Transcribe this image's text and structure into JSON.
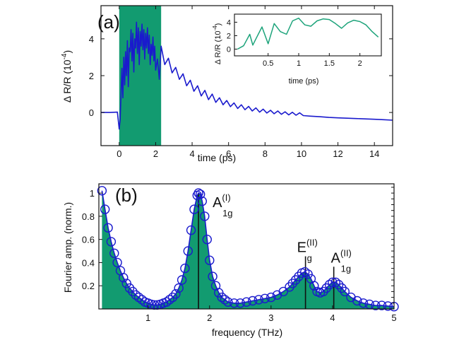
{
  "chart_data": [
    {
      "type": "line",
      "panel_label": "(a)",
      "xlabel": "time (ps)",
      "ylabel": "Δ R/R (10",
      "ylabel_exp": "-4",
      "ylabel_close": ")",
      "xlim": [
        -1,
        15
      ],
      "ylim": [
        -1.8,
        5.8
      ],
      "xticks": [
        0,
        2,
        4,
        6,
        8,
        10,
        12,
        14
      ],
      "yticks": [
        0,
        2,
        4
      ],
      "series_color": "#1a1acd",
      "shaded_region": {
        "x_start": 0,
        "x_end": 2.3,
        "color": "#129b70"
      },
      "series": [
        {
          "x": [
            -1.0,
            -0.5,
            -0.1,
            0.0,
            0.05,
            0.1,
            0.15,
            0.2,
            0.25,
            0.3,
            0.35,
            0.4,
            0.45,
            0.5,
            0.55,
            0.6,
            0.65,
            0.7,
            0.75,
            0.8,
            0.85,
            0.9,
            0.95,
            1.0,
            1.05,
            1.1,
            1.15,
            1.2,
            1.25,
            1.3,
            1.35,
            1.4,
            1.45,
            1.5,
            1.55,
            1.6,
            1.65,
            1.7,
            1.75,
            1.8,
            1.85,
            1.9,
            1.95,
            2.0,
            2.1,
            2.2,
            2.3,
            2.5,
            2.7,
            2.9,
            3.1,
            3.3,
            3.5,
            3.7,
            3.9,
            4.1,
            4.3,
            4.5,
            4.7,
            4.9,
            5.1,
            5.3,
            5.5,
            5.7,
            5.9,
            6.1,
            6.3,
            6.5,
            6.7,
            6.9,
            7.1,
            7.3,
            7.5,
            7.7,
            7.9,
            8.1,
            8.3,
            8.5,
            8.7,
            8.9,
            9.1,
            9.3,
            9.5,
            9.7,
            9.9,
            10.1,
            10.5,
            11.0,
            11.5,
            12.0,
            12.5,
            13.0,
            13.5,
            14.0,
            14.5,
            15.0
          ],
          "y": [
            0.0,
            0.0,
            0.02,
            -0.9,
            -0.4,
            1.0,
            2.4,
            0.8,
            3.0,
            1.5,
            3.3,
            2.0,
            3.9,
            1.4,
            3.5,
            3.3,
            4.5,
            2.8,
            4.3,
            2.2,
            4.0,
            3.5,
            4.9,
            3.2,
            4.6,
            2.6,
            4.4,
            3.6,
            4.8,
            3.4,
            4.5,
            2.9,
            4.3,
            3.5,
            4.6,
            3.2,
            4.2,
            2.6,
            3.7,
            3.1,
            4.1,
            2.8,
            3.6,
            2.3,
            2.9,
            1.8,
            3.6,
            2.6,
            2.95,
            2.15,
            2.45,
            1.8,
            2.1,
            1.45,
            1.75,
            1.15,
            1.45,
            0.9,
            1.2,
            0.7,
            1.0,
            0.55,
            0.8,
            0.42,
            0.65,
            0.32,
            0.52,
            0.22,
            0.42,
            0.15,
            0.33,
            0.08,
            0.25,
            0.02,
            0.18,
            -0.03,
            0.12,
            -0.07,
            0.08,
            -0.1,
            0.04,
            -0.13,
            0.01,
            -0.15,
            -0.02,
            -0.17,
            -0.2,
            -0.23,
            -0.27,
            -0.29,
            -0.31,
            -0.33,
            -0.35,
            -0.37,
            -0.39,
            -0.42
          ]
        }
      ],
      "inset": {
        "ylabel": "Δ R/R (10",
        "ylabel_exp": "-4",
        "ylabel_close": ")",
        "xlabel": "time (ps)",
        "xlim": [
          -0.05,
          2.35
        ],
        "ylim": [
          -1.0,
          5.2
        ],
        "xticks": [
          0.5,
          1,
          1.5,
          2
        ],
        "xtick_labels": [
          "0.5",
          "1",
          "1.5",
          "2"
        ],
        "yticks": [
          0,
          2,
          4
        ],
        "series_color": "#1ca37a",
        "x": [
          0.0,
          0.1,
          0.2,
          0.25,
          0.3,
          0.4,
          0.5,
          0.6,
          0.7,
          0.8,
          0.9,
          1.0,
          1.1,
          1.2,
          1.3,
          1.4,
          1.5,
          1.6,
          1.7,
          1.8,
          1.9,
          2.0,
          2.1,
          2.2,
          2.3
        ],
        "y": [
          0.0,
          0.5,
          2.2,
          0.6,
          1.5,
          3.3,
          0.8,
          3.8,
          2.6,
          2.2,
          4.2,
          4.6,
          3.6,
          3.4,
          4.2,
          4.5,
          4.4,
          3.8,
          3.1,
          3.9,
          4.3,
          4.1,
          3.6,
          2.6,
          1.8
        ]
      }
    },
    {
      "type": "scatter",
      "panel_label": "(b)",
      "xlabel": "frequency (THz)",
      "ylabel": "Fourier amp. (norm.)",
      "xlim": [
        0.2,
        5.0
      ],
      "ylim": [
        0.0,
        1.08
      ],
      "xticks": [
        1,
        2,
        3,
        4,
        5
      ],
      "yticks": [
        0.2,
        0.4,
        0.6,
        0.8,
        1
      ],
      "ytick_labels": [
        "0.2",
        "0.4",
        "0.6",
        "0.8",
        "1"
      ],
      "fill_color": "#129b70",
      "marker_color": "#1a1acd",
      "fit_color": "#1a1acd",
      "series": [
        {
          "x": [
            0.25,
            0.3,
            0.35,
            0.4,
            0.45,
            0.5,
            0.55,
            0.6,
            0.65,
            0.7,
            0.75,
            0.8,
            0.85,
            0.9,
            0.95,
            1.0,
            1.05,
            1.1,
            1.15,
            1.2,
            1.25,
            1.3,
            1.35,
            1.4,
            1.45,
            1.5,
            1.55,
            1.6,
            1.65,
            1.7,
            1.75,
            1.8,
            1.82,
            1.85,
            1.88,
            1.92,
            1.96,
            2.0,
            2.05,
            2.1,
            2.15,
            2.2,
            2.25,
            2.3,
            2.4,
            2.5,
            2.6,
            2.7,
            2.8,
            2.9,
            3.0,
            3.1,
            3.2,
            3.3,
            3.35,
            3.4,
            3.45,
            3.5,
            3.55,
            3.6,
            3.65,
            3.7,
            3.75,
            3.8,
            3.85,
            3.9,
            3.95,
            4.0,
            4.05,
            4.1,
            4.15,
            4.2,
            4.3,
            4.4,
            4.5,
            4.6,
            4.7,
            4.8,
            4.9,
            5.0
          ],
          "y": [
            1.02,
            0.86,
            0.7,
            0.58,
            0.48,
            0.4,
            0.33,
            0.27,
            0.22,
            0.18,
            0.15,
            0.12,
            0.1,
            0.08,
            0.06,
            0.05,
            0.04,
            0.035,
            0.035,
            0.04,
            0.05,
            0.06,
            0.08,
            0.1,
            0.13,
            0.18,
            0.25,
            0.35,
            0.5,
            0.68,
            0.86,
            0.98,
            1.0,
            0.99,
            0.93,
            0.8,
            0.6,
            0.42,
            0.28,
            0.2,
            0.14,
            0.1,
            0.08,
            0.06,
            0.05,
            0.05,
            0.06,
            0.07,
            0.08,
            0.09,
            0.1,
            0.12,
            0.15,
            0.19,
            0.22,
            0.25,
            0.28,
            0.31,
            0.32,
            0.3,
            0.26,
            0.2,
            0.15,
            0.14,
            0.15,
            0.18,
            0.21,
            0.23,
            0.23,
            0.21,
            0.18,
            0.15,
            0.1,
            0.07,
            0.05,
            0.04,
            0.03,
            0.03,
            0.025,
            0.02
          ]
        }
      ],
      "annotations": [
        {
          "base": "A",
          "sub": "1g",
          "sup": "(I)",
          "x": 1.82,
          "y": 1.0
        },
        {
          "base": "E",
          "sub": "g",
          "sup": "(II)",
          "x": 3.56,
          "y": 0.32
        },
        {
          "base": "A",
          "sub": "1g",
          "sup": "(II)",
          "x": 4.02,
          "y": 0.23
        }
      ]
    }
  ]
}
